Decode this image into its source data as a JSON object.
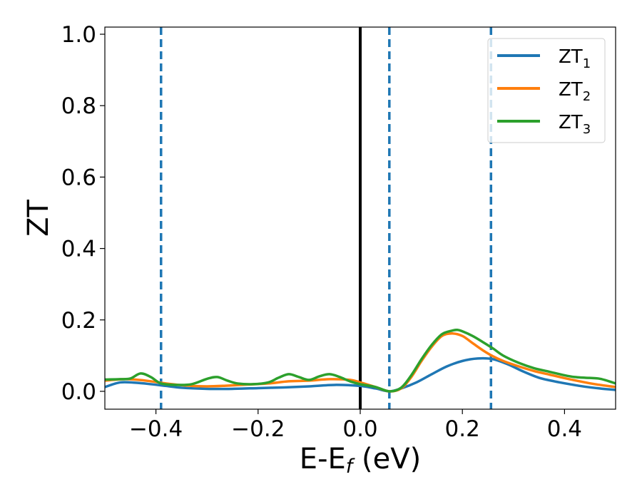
{
  "chart_data": {
    "type": "line",
    "xlabel": "E-E",
    "xlabel_sub": "f",
    "xlabel_unit": " (eV)",
    "ylabel": "ZT",
    "xlim": [
      -0.5,
      0.5
    ],
    "ylim": [
      -0.05,
      1.02
    ],
    "xticks": [
      -0.4,
      -0.2,
      0.0,
      0.2,
      0.4
    ],
    "xtick_labels": [
      "−0.4",
      "−0.2",
      "0.0",
      "0.2",
      "0.4"
    ],
    "yticks": [
      0.0,
      0.2,
      0.4,
      0.6,
      0.8,
      1.0
    ],
    "ytick_labels": [
      "0.0",
      "0.2",
      "0.4",
      "0.6",
      "0.8",
      "1.0"
    ],
    "legend_position": "top-right",
    "grid": false,
    "vlines": [
      {
        "x": -0.39,
        "style": "dashed",
        "color": "#1f77b4"
      },
      {
        "x": 0.0,
        "style": "solid",
        "color": "#000000"
      },
      {
        "x": 0.057,
        "style": "dashed",
        "color": "#1f77b4"
      },
      {
        "x": 0.256,
        "style": "dashed",
        "color": "#1f77b4"
      }
    ],
    "series": [
      {
        "name": "ZT",
        "sub": "1",
        "color": "#1f77b4",
        "x": [
          -0.5,
          -0.47,
          -0.44,
          -0.41,
          -0.38,
          -0.35,
          -0.3,
          -0.25,
          -0.2,
          -0.15,
          -0.1,
          -0.05,
          0.0,
          0.03,
          0.057,
          0.08,
          0.11,
          0.14,
          0.17,
          0.2,
          0.23,
          0.26,
          0.29,
          0.32,
          0.35,
          0.38,
          0.41,
          0.44,
          0.47,
          0.5
        ],
        "y": [
          0.012,
          0.025,
          0.024,
          0.02,
          0.015,
          0.01,
          0.007,
          0.007,
          0.009,
          0.011,
          0.014,
          0.018,
          0.015,
          0.008,
          0.0,
          0.008,
          0.025,
          0.048,
          0.07,
          0.085,
          0.092,
          0.09,
          0.075,
          0.055,
          0.038,
          0.028,
          0.02,
          0.013,
          0.008,
          0.004
        ]
      },
      {
        "name": "ZT",
        "sub": "2",
        "color": "#ff7f0e",
        "x": [
          -0.5,
          -0.46,
          -0.42,
          -0.38,
          -0.34,
          -0.3,
          -0.26,
          -0.22,
          -0.18,
          -0.14,
          -0.1,
          -0.06,
          -0.02,
          0.0,
          0.03,
          0.057,
          0.08,
          0.1,
          0.12,
          0.14,
          0.16,
          0.18,
          0.2,
          0.22,
          0.24,
          0.26,
          0.28,
          0.31,
          0.34,
          0.37,
          0.4,
          0.43,
          0.46,
          0.5
        ],
        "y": [
          0.03,
          0.034,
          0.03,
          0.022,
          0.016,
          0.014,
          0.016,
          0.019,
          0.022,
          0.028,
          0.03,
          0.034,
          0.032,
          0.025,
          0.012,
          0.0,
          0.008,
          0.04,
          0.085,
          0.125,
          0.155,
          0.162,
          0.155,
          0.135,
          0.115,
          0.098,
          0.085,
          0.07,
          0.057,
          0.047,
          0.037,
          0.028,
          0.02,
          0.012
        ]
      },
      {
        "name": "ZT",
        "sub": "3",
        "color": "#2ca02c",
        "x": [
          -0.5,
          -0.47,
          -0.45,
          -0.43,
          -0.41,
          -0.39,
          -0.36,
          -0.33,
          -0.3,
          -0.28,
          -0.26,
          -0.24,
          -0.21,
          -0.18,
          -0.16,
          -0.14,
          -0.12,
          -0.1,
          -0.08,
          -0.06,
          -0.04,
          -0.02,
          0.0,
          0.03,
          0.057,
          0.08,
          0.1,
          0.12,
          0.14,
          0.16,
          0.18,
          0.19,
          0.2,
          0.22,
          0.24,
          0.26,
          0.28,
          0.31,
          0.34,
          0.37,
          0.4,
          0.42,
          0.44,
          0.47,
          0.5
        ],
        "y": [
          0.033,
          0.034,
          0.036,
          0.05,
          0.04,
          0.022,
          0.018,
          0.02,
          0.035,
          0.04,
          0.03,
          0.022,
          0.02,
          0.025,
          0.038,
          0.048,
          0.04,
          0.032,
          0.042,
          0.048,
          0.04,
          0.028,
          0.02,
          0.012,
          0.0,
          0.01,
          0.045,
          0.09,
          0.13,
          0.16,
          0.17,
          0.172,
          0.168,
          0.155,
          0.138,
          0.12,
          0.1,
          0.08,
          0.065,
          0.055,
          0.045,
          0.04,
          0.038,
          0.035,
          0.022
        ]
      }
    ]
  }
}
